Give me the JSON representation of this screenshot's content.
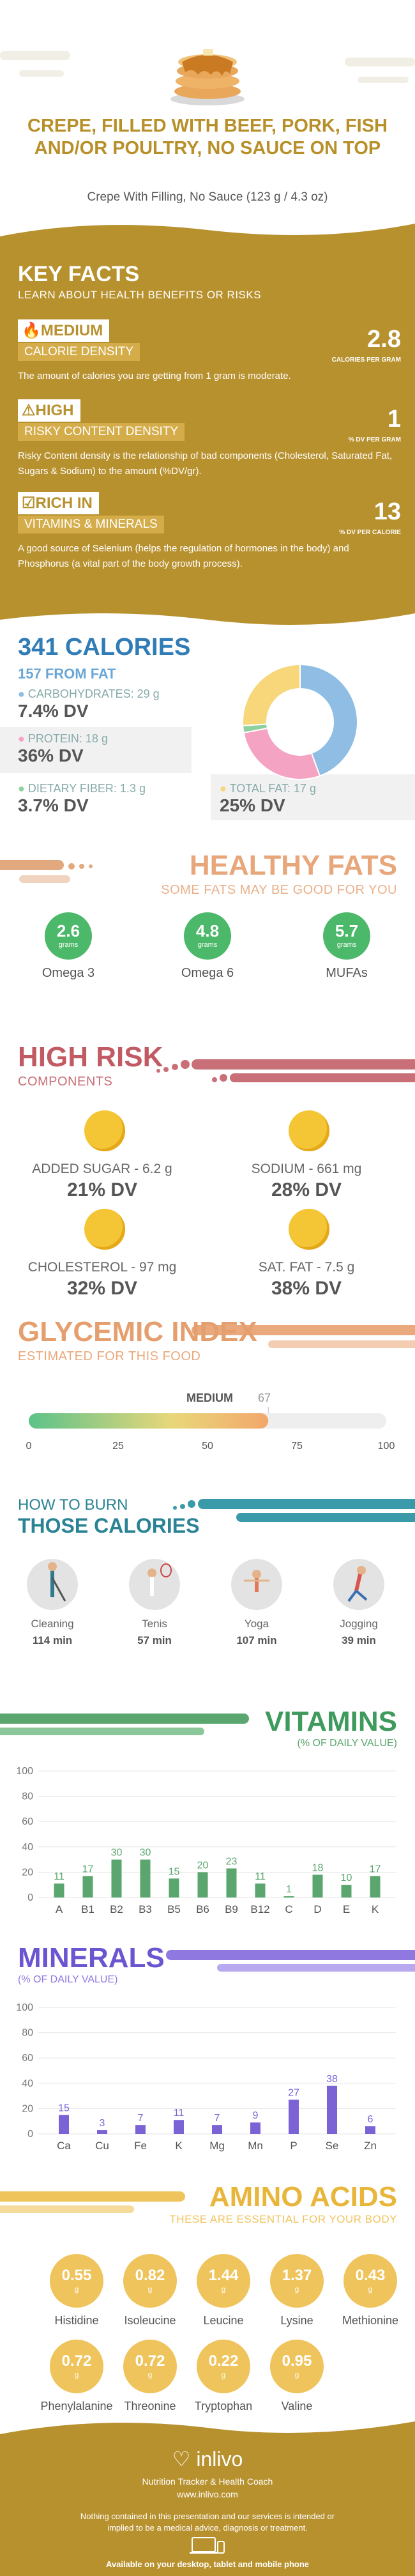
{
  "header": {
    "title": "CREPE, FILLED WITH BEEF, PORK, FISH AND/OR POULTRY, NO SAUCE ON TOP",
    "subtitle": "Crepe With Filling, No Sauce (123 g / 4.3 oz)"
  },
  "key_facts": {
    "title": "KEY FACTS",
    "subtitle": "LEARN ABOUT HEALTH BENEFITS OR RISKS",
    "items": [
      {
        "level": "MEDIUM",
        "name": "CALORIE DENSITY",
        "value": "2.8",
        "unit": "CALORIES PER GRAM",
        "desc": "The amount of calories you are getting from 1 gram is moderate."
      },
      {
        "level": "HIGH",
        "name": "RISKY CONTENT DENSITY",
        "value": "1",
        "unit": "% DV PER GRAM",
        "desc": "Risky Content density is the relationship of bad components (Cholesterol, Saturated Fat, Sugars & Sodium) to the amount (%DV/gr)."
      },
      {
        "level": "RICH  IN",
        "name": "VITAMINS & MINERALS",
        "value": "13",
        "unit": "% DV PER CALORIE",
        "desc": "A good source of Selenium (helps the regulation of hormones in the body) and Phosphorus (a vital part of the body growth process)."
      }
    ]
  },
  "calories": {
    "title": "341 CALORIES",
    "from_fat": "157 FROM FAT",
    "carbs": {
      "label": "CARBOHYDRATES: 29 g",
      "dv": "7.4% DV"
    },
    "protein": {
      "label": "PROTEIN: 18 g",
      "dv": "36% DV"
    },
    "fiber": {
      "label": "DIETARY FIBER: 1.3 g",
      "dv": "3.7% DV"
    },
    "fat": {
      "label": "TOTAL FAT: 17 g",
      "dv": "25% DV"
    },
    "donut": [
      {
        "part": "carbs",
        "value": 29,
        "color": "#8fbde3"
      },
      {
        "part": "protein",
        "value": 18,
        "color": "#f5a3c2"
      },
      {
        "part": "fiber",
        "value": 1.3,
        "color": "#8fd19e"
      },
      {
        "part": "fat",
        "value": 17,
        "color": "#f7d77a"
      }
    ]
  },
  "healthy_fats": {
    "title": "HEALTHY FATS",
    "subtitle": "SOME FATS MAY BE GOOD FOR YOU",
    "unit": "grams",
    "items": [
      {
        "value": "2.6",
        "label": "Omega 3"
      },
      {
        "value": "4.8",
        "label": "Omega 6"
      },
      {
        "value": "5.7",
        "label": "MUFAs"
      }
    ]
  },
  "high_risk": {
    "title": "HIGH RISK",
    "subtitle": "COMPONENTS",
    "items": [
      {
        "label": "ADDED SUGAR - 6.2 g",
        "dv": "21% DV"
      },
      {
        "label": "SODIUM - 661 mg",
        "dv": "28% DV"
      },
      {
        "label": "CHOLESTEROL - 97 mg",
        "dv": "32% DV"
      },
      {
        "label": "SAT. FAT - 7.5 g",
        "dv": "38% DV"
      }
    ]
  },
  "glycemic": {
    "title": "GLYCEMIC INDEX",
    "subtitle": "ESTIMATED FOR THIS FOOD",
    "level": "MEDIUM",
    "value": 67,
    "ticks": [
      "0",
      "25",
      "50",
      "75",
      "100"
    ]
  },
  "burn": {
    "title1": "HOW TO BURN",
    "title2": "THOSE CALORIES",
    "items": [
      {
        "name": "Cleaning",
        "minutes": "114 min",
        "icon": "cleaning-icon"
      },
      {
        "name": "Tenis",
        "minutes": "57 min",
        "icon": "tennis-icon"
      },
      {
        "name": "Yoga",
        "minutes": "107 min",
        "icon": "yoga-icon"
      },
      {
        "name": "Jogging",
        "minutes": "39 min",
        "icon": "jogging-icon"
      }
    ]
  },
  "chart_data": [
    {
      "type": "bar",
      "title": "VITAMINS",
      "subtitle": "(% OF DAILY VALUE)",
      "categories": [
        "A",
        "B1",
        "B2",
        "B3",
        "B5",
        "B6",
        "B9",
        "B12",
        "C",
        "D",
        "E",
        "K"
      ],
      "values": [
        11,
        17,
        30,
        30,
        15,
        20,
        23,
        11,
        1,
        18,
        10,
        17
      ],
      "ylim": [
        0,
        100
      ],
      "yticks": [
        0,
        20,
        40,
        60,
        80,
        100
      ],
      "color": "#5aa66e",
      "grid": true
    },
    {
      "type": "bar",
      "title": "MINERALS",
      "subtitle": "(% OF DAILY VALUE)",
      "categories": [
        "Ca",
        "Cu",
        "Fe",
        "K",
        "Mg",
        "Mn",
        "P",
        "Se",
        "Zn"
      ],
      "values": [
        15,
        3,
        7,
        11,
        7,
        9,
        27,
        38,
        6
      ],
      "ylim": [
        0,
        100
      ],
      "yticks": [
        0,
        20,
        40,
        60,
        80,
        100
      ],
      "color": "#7b63d6",
      "grid": true
    }
  ],
  "amino": {
    "title": "AMINO ACIDS",
    "subtitle": "THESE ARE ESSENTIAL FOR YOUR BODY",
    "unit": "g",
    "items": [
      {
        "value": "0.55",
        "label": "Histidine"
      },
      {
        "value": "0.82",
        "label": "Isoleucine"
      },
      {
        "value": "1.44",
        "label": "Leucine"
      },
      {
        "value": "1.37",
        "label": "Lysine"
      },
      {
        "value": "0.43",
        "label": "Methionine"
      },
      {
        "value": "0.72",
        "label": "Phenylalanine"
      },
      {
        "value": "0.72",
        "label": "Threonine"
      },
      {
        "value": "0.22",
        "label": "Tryptophan"
      },
      {
        "value": "0.95",
        "label": "Valine"
      }
    ]
  },
  "footer": {
    "brand": "inlivo",
    "tagline": "Nutrition Tracker & Health Coach",
    "url": "www.inlivo.com",
    "disclaimer": "Nothing contained in this presentation and our services is intended or implied to be a medical advice, diagnosis or treatment.",
    "available": "Available on your desktop, tablet and mobile phone"
  }
}
